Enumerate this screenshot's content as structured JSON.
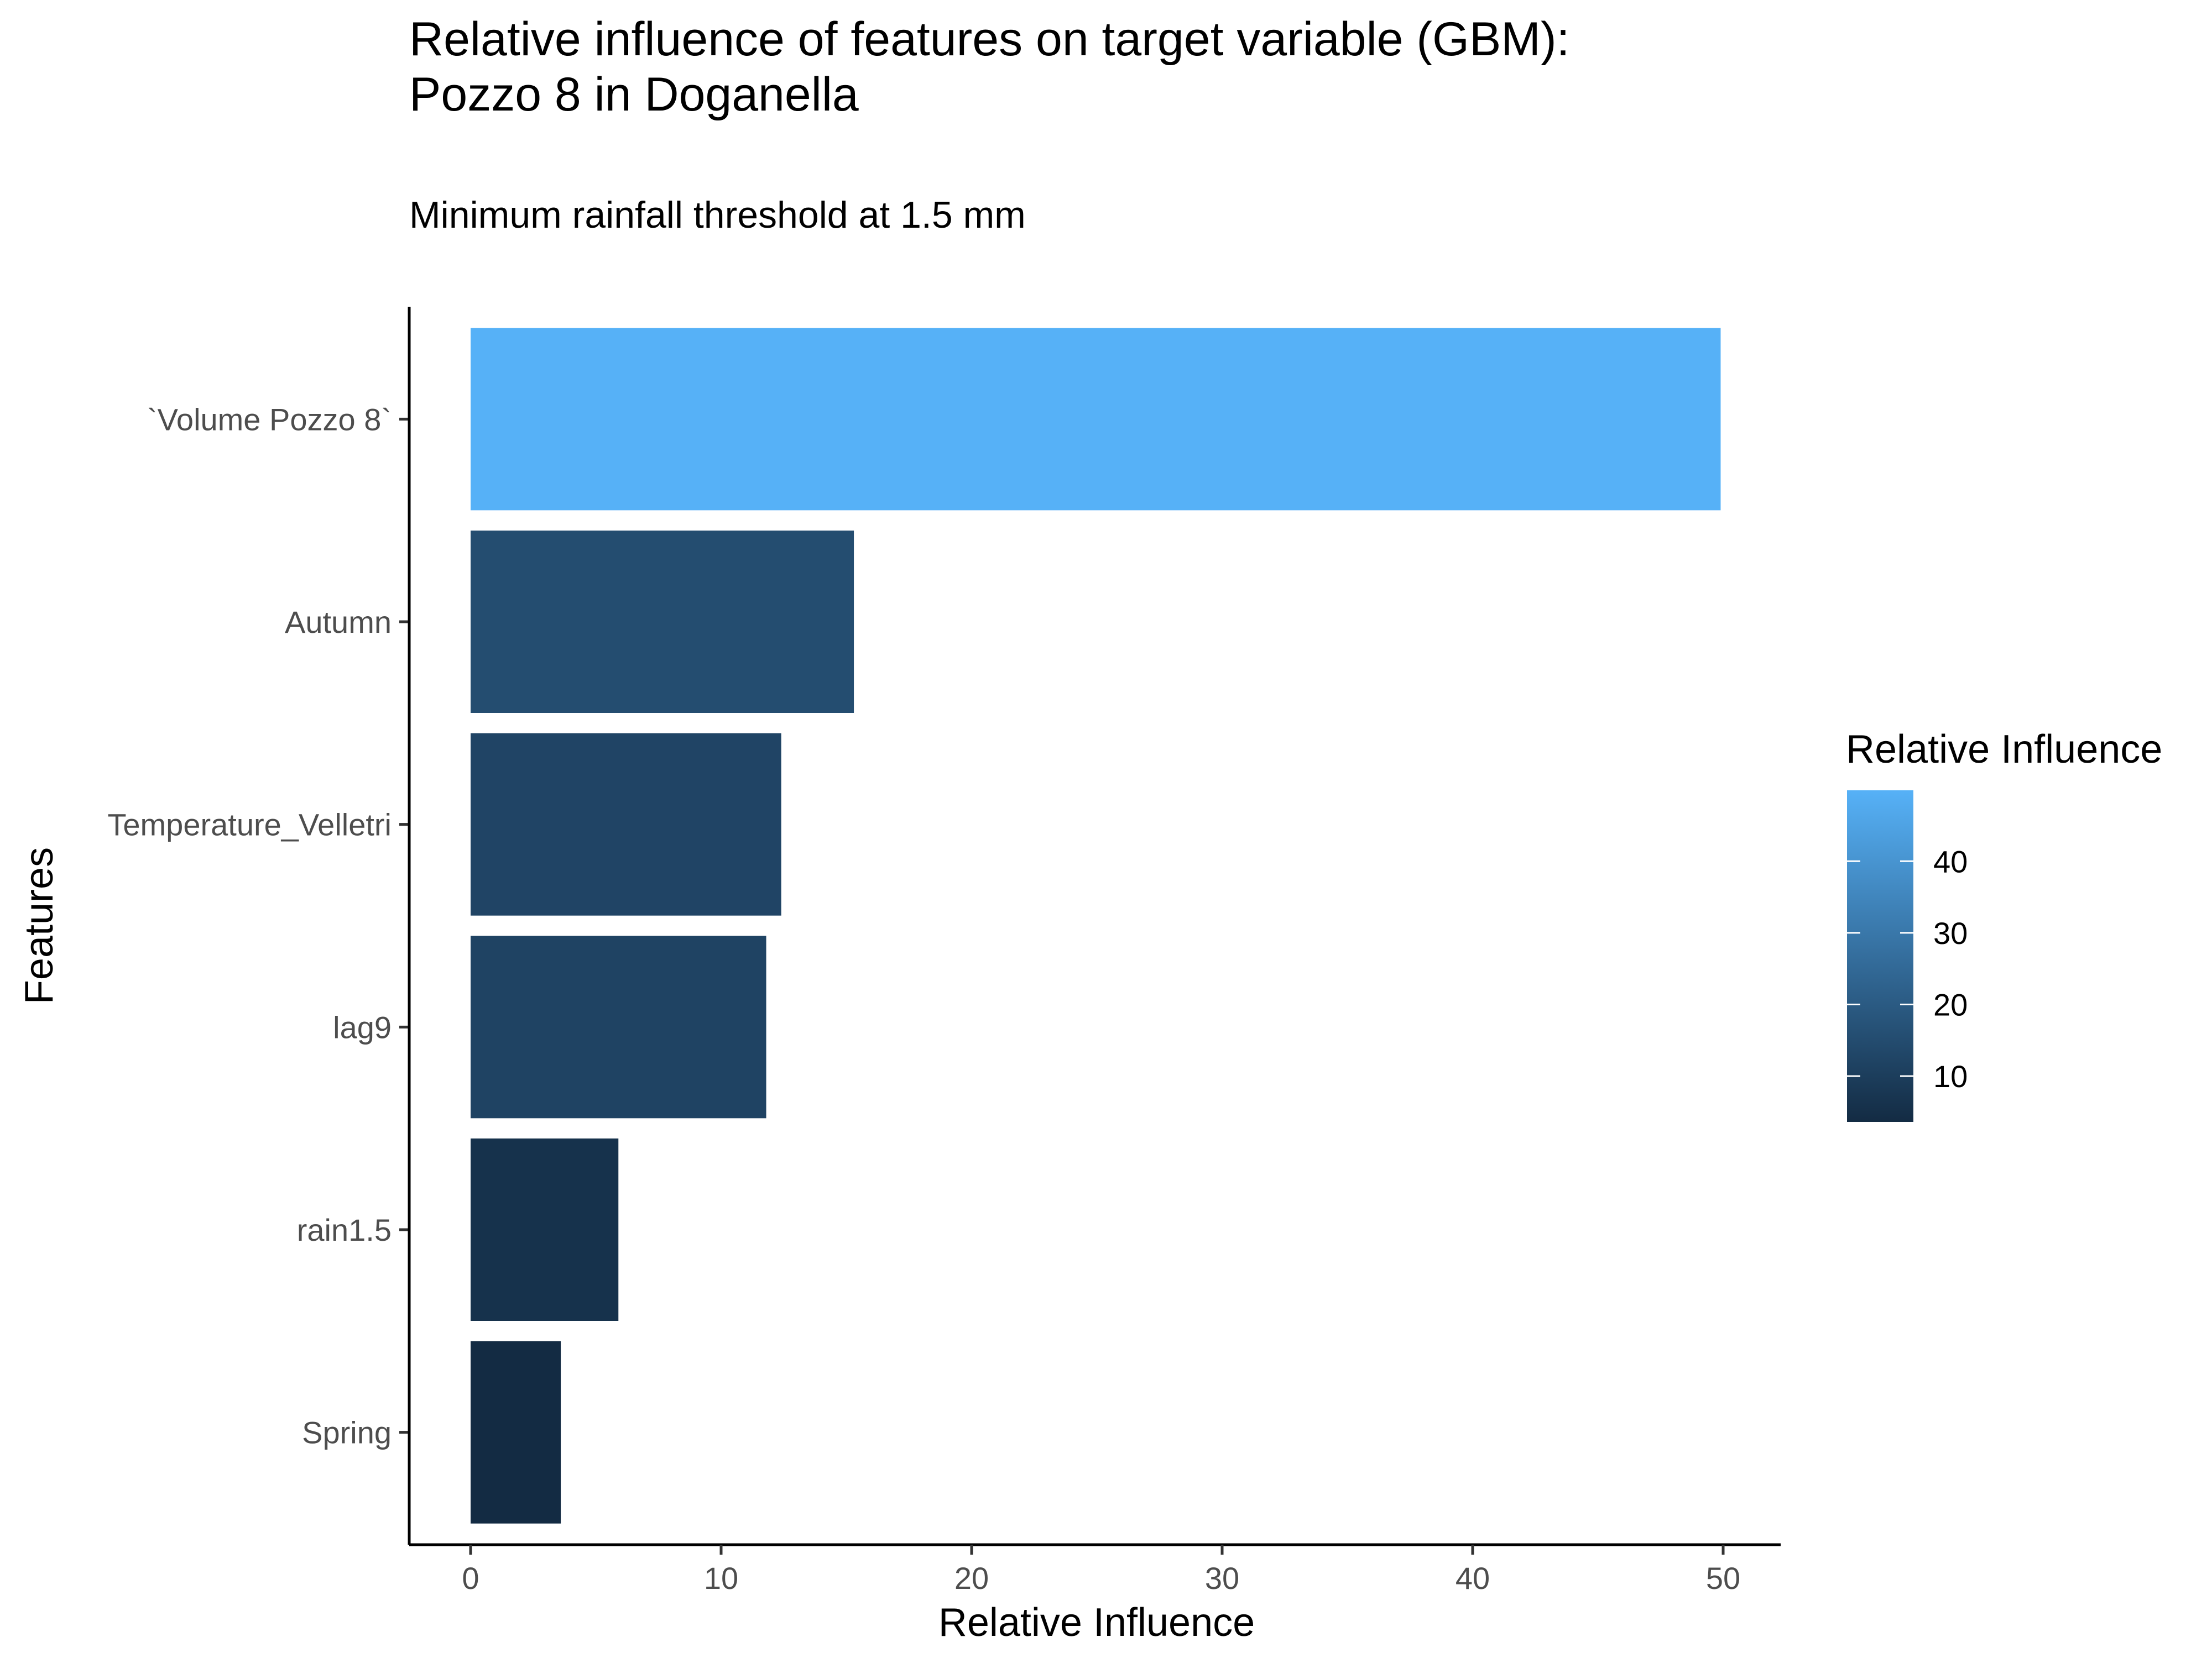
{
  "chart_data": {
    "type": "bar",
    "orientation": "horizontal",
    "title_lines": [
      "Relative influence of features on target variable (GBM):",
      "Pozzo 8 in Doganella"
    ],
    "subtitle": "Minimum rainfall threshold at 1.5 mm",
    "xlabel": "Relative Influence",
    "ylabel": "Features",
    "xlim": [
      0,
      52
    ],
    "x_ticks": [
      0,
      10,
      20,
      30,
      40,
      50
    ],
    "categories": [
      "`Volume Pozzo 8`",
      "Autumn",
      "Temperature_Velletri",
      "lag9",
      "rain1.5",
      "Spring"
    ],
    "values": [
      49.9,
      15.3,
      12.4,
      11.8,
      5.9,
      3.6
    ],
    "fill_by_value": true,
    "legend": {
      "title": "Relative Influence",
      "placement": "right",
      "ticks": [
        10,
        20,
        30,
        40
      ],
      "range": [
        3.6,
        49.9
      ],
      "color_low": "#132b43",
      "color_high": "#56b1f7"
    },
    "grid": false
  }
}
